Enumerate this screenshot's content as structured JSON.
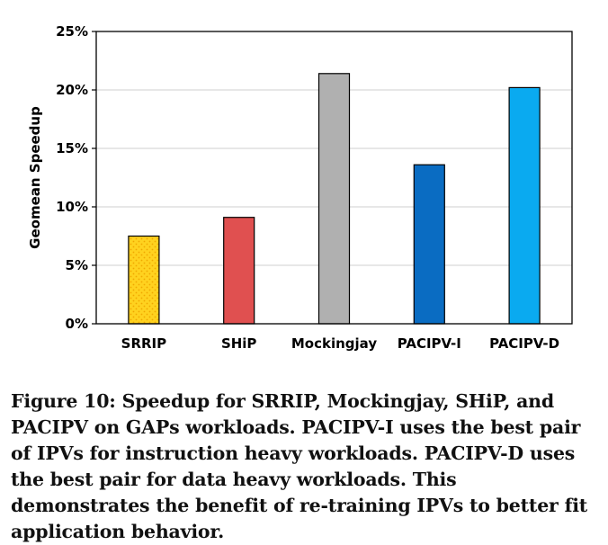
{
  "chart_data": {
    "type": "bar",
    "title": "",
    "xlabel": "",
    "ylabel": "Geomean Speedup",
    "ylim": [
      0,
      25
    ],
    "grid": true,
    "yticks": [
      {
        "value": 0,
        "label": "0%"
      },
      {
        "value": 5,
        "label": "5%"
      },
      {
        "value": 10,
        "label": "10%"
      },
      {
        "value": 15,
        "label": "15%"
      },
      {
        "value": 20,
        "label": "20%"
      },
      {
        "value": 25,
        "label": "25%"
      }
    ],
    "categories": [
      "SRRIP",
      "SHiP",
      "Mockingjay",
      "PACIPV-I",
      "PACIPV-D"
    ],
    "values": [
      7.5,
      9.1,
      21.4,
      13.6,
      20.2
    ],
    "colors": [
      "#ffd21f",
      "#e05050",
      "#b0b0b0",
      "#0a6cc2",
      "#0aaaf0"
    ],
    "patterns": [
      "dots",
      "none",
      "none",
      "none",
      "none"
    ]
  },
  "caption": "Figure 10: Speedup for SRRIP, Mockingjay, SHiP, and PACIPV on GAPs workloads. PACIPV-I uses the best pair of IPVs for instruction heavy workloads. PACIPV-D uses the best pair for data heavy workloads. This demonstrates the benefit of re-training IPVs to better fit application behavior."
}
